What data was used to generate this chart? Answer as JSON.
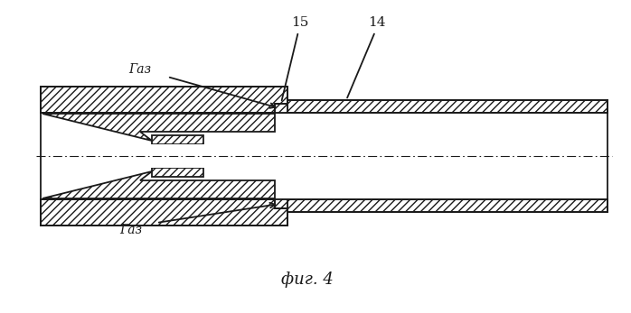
{
  "title": "фиг. 4",
  "label_14": "14",
  "label_15": "15",
  "label_gas_top": "Газ",
  "label_gas_bottom": "Газ",
  "bg_color": "#ffffff",
  "line_color": "#1a1a1a",
  "fig_width": 6.98,
  "fig_height": 3.47,
  "dpi": 100
}
